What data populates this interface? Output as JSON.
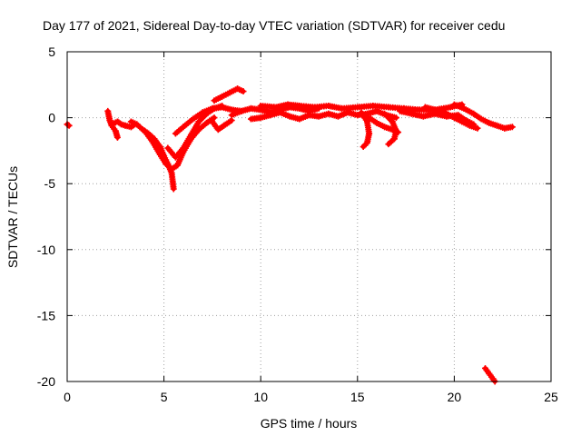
{
  "chart_data": {
    "type": "scatter",
    "title": "Day 177 of 2021, Sidereal Day-to-day VTEC variation (SDTVAR) for receiver cedu",
    "xlabel": "GPS time / hours",
    "ylabel": "SDTVAR / TECUs",
    "xlim": [
      0,
      25
    ],
    "ylim": [
      -20,
      5
    ],
    "xticks": [
      0,
      5,
      10,
      15,
      20,
      25
    ],
    "yticks": [
      5,
      0,
      -5,
      -10,
      -15,
      -20
    ],
    "grid": true,
    "legend": "none",
    "series": [
      {
        "name": "SDTVAR",
        "color": "#ff0000",
        "marker": "+",
        "segments": [
          [
            [
              0.0,
              -0.5
            ],
            [
              0.1,
              -0.6
            ]
          ],
          [
            [
              2.1,
              0.5
            ],
            [
              2.2,
              -0.2
            ],
            [
              2.3,
              -0.6
            ],
            [
              2.5,
              -1.0
            ],
            [
              2.6,
              -1.5
            ]
          ],
          [
            [
              2.3,
              -0.5
            ],
            [
              2.6,
              -0.3
            ],
            [
              2.8,
              -0.5
            ],
            [
              3.0,
              -0.6
            ],
            [
              3.3,
              -0.7
            ],
            [
              3.5,
              -0.5
            ]
          ],
          [
            [
              3.3,
              -0.3
            ],
            [
              3.6,
              -0.5
            ],
            [
              3.9,
              -0.9
            ],
            [
              4.2,
              -1.2
            ],
            [
              4.5,
              -1.6
            ],
            [
              4.8,
              -2.2
            ],
            [
              5.0,
              -2.9
            ],
            [
              5.2,
              -3.5
            ],
            [
              5.4,
              -4.2
            ],
            [
              5.5,
              -5.4
            ]
          ],
          [
            [
              4.0,
              -1.0
            ],
            [
              4.4,
              -1.8
            ],
            [
              4.8,
              -2.8
            ],
            [
              5.1,
              -3.5
            ],
            [
              5.4,
              -3.9
            ],
            [
              5.7,
              -3.6
            ],
            [
              6.0,
              -2.6
            ],
            [
              6.4,
              -1.6
            ],
            [
              6.8,
              -0.9
            ],
            [
              7.2,
              -0.4
            ],
            [
              7.6,
              0.0
            ]
          ],
          [
            [
              5.2,
              -2.3
            ],
            [
              5.6,
              -3.0
            ],
            [
              6.0,
              -2.3
            ],
            [
              6.4,
              -1.3
            ],
            [
              6.8,
              -0.3
            ],
            [
              7.2,
              0.3
            ],
            [
              7.6,
              0.7
            ],
            [
              8.0,
              0.9
            ]
          ],
          [
            [
              5.6,
              -1.2
            ],
            [
              6.0,
              -0.7
            ],
            [
              6.5,
              -0.1
            ],
            [
              7.0,
              0.4
            ],
            [
              7.5,
              0.7
            ],
            [
              8.0,
              0.8
            ],
            [
              8.5,
              0.6
            ],
            [
              9.0,
              0.5
            ]
          ],
          [
            [
              7.5,
              -0.3
            ],
            [
              7.8,
              -0.9
            ],
            [
              8.1,
              -0.6
            ],
            [
              8.5,
              -0.2
            ]
          ],
          [
            [
              7.6,
              1.3
            ],
            [
              8.0,
              1.6
            ],
            [
              8.4,
              1.9
            ],
            [
              8.8,
              2.2
            ],
            [
              9.1,
              2.0
            ]
          ],
          [
            [
              8.5,
              0.2
            ],
            [
              9.0,
              0.5
            ],
            [
              9.5,
              0.7
            ],
            [
              10.0,
              0.6
            ],
            [
              10.5,
              0.4
            ],
            [
              11.0,
              0.6
            ],
            [
              11.5,
              0.8
            ],
            [
              12.0,
              0.7
            ],
            [
              12.5,
              0.5
            ],
            [
              13.0,
              0.7
            ]
          ],
          [
            [
              9.5,
              -0.1
            ],
            [
              10.0,
              0.0
            ],
            [
              10.5,
              0.2
            ],
            [
              11.0,
              0.4
            ],
            [
              11.5,
              0.1
            ],
            [
              12.0,
              -0.1
            ],
            [
              12.5,
              0.2
            ],
            [
              13.0,
              0.1
            ],
            [
              13.5,
              0.3
            ]
          ],
          [
            [
              10.0,
              0.9
            ],
            [
              10.8,
              0.8
            ],
            [
              11.4,
              1.0
            ],
            [
              12.0,
              0.9
            ],
            [
              12.8,
              0.8
            ],
            [
              13.5,
              0.9
            ],
            [
              14.2,
              0.7
            ],
            [
              15.0,
              0.8
            ],
            [
              15.8,
              0.9
            ],
            [
              16.6,
              0.8
            ],
            [
              17.4,
              0.7
            ],
            [
              18.2,
              0.6
            ],
            [
              19.0,
              0.6
            ],
            [
              19.8,
              0.8
            ],
            [
              20.4,
              1.0
            ]
          ],
          [
            [
              13.5,
              0.3
            ],
            [
              14.0,
              0.1
            ],
            [
              14.5,
              0.4
            ],
            [
              15.0,
              0.2
            ],
            [
              15.5,
              0.3
            ],
            [
              16.0,
              0.5
            ],
            [
              16.5,
              0.2
            ],
            [
              17.0,
              0.0
            ]
          ],
          [
            [
              15.2,
              0.4
            ],
            [
              15.5,
              -0.3
            ],
            [
              15.6,
              -1.2
            ],
            [
              15.5,
              -1.9
            ],
            [
              15.3,
              -2.2
            ]
          ],
          [
            [
              15.6,
              0.0
            ],
            [
              16.0,
              -0.4
            ],
            [
              16.4,
              -0.7
            ],
            [
              16.8,
              -0.9
            ],
            [
              17.1,
              -1.1
            ]
          ],
          [
            [
              16.4,
              0.3
            ],
            [
              16.8,
              -0.3
            ],
            [
              17.0,
              -1.0
            ],
            [
              16.9,
              -1.6
            ],
            [
              16.6,
              -2.0
            ]
          ],
          [
            [
              17.2,
              0.5
            ],
            [
              17.8,
              0.3
            ],
            [
              18.4,
              0.1
            ],
            [
              19.0,
              0.3
            ],
            [
              19.6,
              0.1
            ],
            [
              20.2,
              0.2
            ],
            [
              20.6,
              -0.2
            ],
            [
              21.0,
              -0.5
            ]
          ],
          [
            [
              18.5,
              0.8
            ],
            [
              19.0,
              0.6
            ],
            [
              19.5,
              0.4
            ],
            [
              20.0,
              0.0
            ],
            [
              20.4,
              -0.3
            ],
            [
              20.8,
              -0.6
            ],
            [
              21.2,
              -0.8
            ]
          ],
          [
            [
              20.0,
              1.0
            ],
            [
              20.5,
              0.7
            ],
            [
              21.0,
              0.3
            ],
            [
              21.4,
              -0.1
            ],
            [
              21.8,
              -0.4
            ],
            [
              22.2,
              -0.6
            ],
            [
              22.6,
              -0.8
            ],
            [
              23.0,
              -0.7
            ]
          ],
          [
            [
              21.6,
              -19.0
            ],
            [
              21.8,
              -19.4
            ],
            [
              22.0,
              -19.8
            ],
            [
              22.1,
              -20.0
            ]
          ]
        ]
      }
    ]
  }
}
